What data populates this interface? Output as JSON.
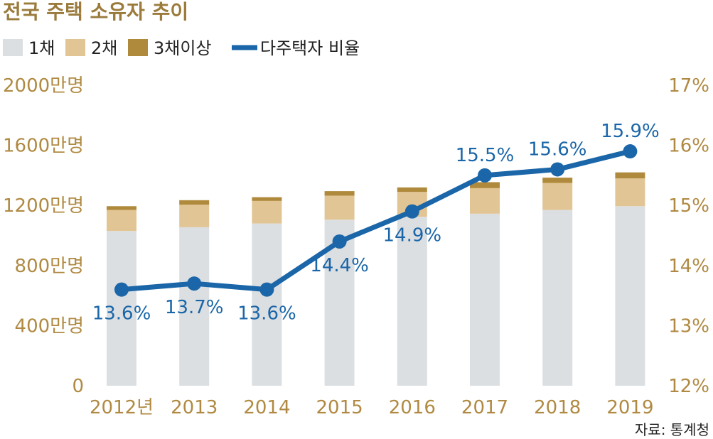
{
  "colors": {
    "one_house": "#dcdfe2",
    "two_houses": "#e2c595",
    "three_plus": "#b08a3c",
    "ratio_line": "#1a66a8",
    "axis_text": "#b08a42",
    "title": "#9a7b3c"
  },
  "chart_data": {
    "type": "bar",
    "title": "전국 주택 소유자 추이",
    "source": "자료: 통계청",
    "categories": [
      "2012년",
      "2013",
      "2014",
      "2015",
      "2016",
      "2017",
      "2018",
      "2019"
    ],
    "series": [
      {
        "name": "1채",
        "type": "bar",
        "stack": "owners",
        "axis": "left",
        "color": "#dcdfe2",
        "values": [
          1030,
          1055,
          1080,
          1105,
          1125,
          1145,
          1170,
          1195
        ]
      },
      {
        "name": "2채",
        "type": "bar",
        "stack": "owners",
        "axis": "left",
        "color": "#e2c595",
        "values": [
          140,
          150,
          150,
          160,
          165,
          170,
          180,
          185
        ]
      },
      {
        "name": "3채이상",
        "type": "bar",
        "stack": "owners",
        "axis": "left",
        "color": "#b08a3c",
        "values": [
          25,
          30,
          25,
          30,
          30,
          40,
          35,
          40
        ]
      },
      {
        "name": "다주택자 비율",
        "type": "line",
        "axis": "right",
        "color": "#1a66a8",
        "values": [
          13.6,
          13.7,
          13.6,
          14.4,
          14.9,
          15.5,
          15.6,
          15.9
        ],
        "labels": [
          "13.6%",
          "13.7%",
          "13.6%",
          "14.4%",
          "14.9%",
          "15.5%",
          "15.6%",
          "15.9%"
        ]
      }
    ],
    "y_left": {
      "ticks": [
        0,
        400,
        800,
        1200,
        1600,
        2000
      ],
      "tick_labels": [
        "0",
        "400만명",
        "800만명",
        "1200만명",
        "1600만명",
        "2000만명"
      ],
      "ylim": [
        0,
        2000
      ]
    },
    "y_right": {
      "ticks": [
        12,
        13,
        14,
        15,
        16,
        17
      ],
      "tick_labels": [
        "12%",
        "13%",
        "14%",
        "15%",
        "16%",
        "17%"
      ],
      "ylim": [
        12,
        17
      ]
    },
    "grid": false,
    "legend_position": "top-left"
  }
}
